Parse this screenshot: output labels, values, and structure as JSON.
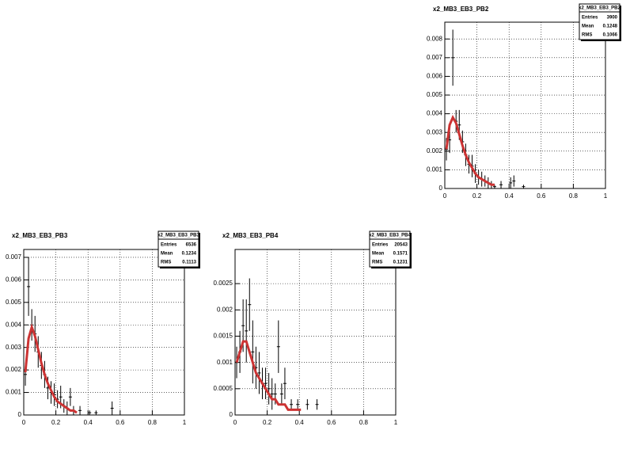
{
  "chart_data": [
    {
      "type": "errorbar",
      "title": "x2_MB3_EB3_PB2",
      "stats": {
        "name": "x2_MB3_EB3_PB2",
        "rows": [
          {
            "label": "Entries",
            "value": 3900
          },
          {
            "label": "Mean",
            "value": 0.1248
          },
          {
            "label": "RMS",
            "value": 0.1066
          }
        ]
      },
      "x": [
        0.01,
        0.03,
        0.05,
        0.07,
        0.09,
        0.11,
        0.13,
        0.15,
        0.17,
        0.19,
        0.21,
        0.23,
        0.25,
        0.27,
        0.29,
        0.31,
        0.35,
        0.41,
        0.43,
        0.49
      ],
      "values": [
        0.0021,
        0.0026,
        0.007,
        0.0036,
        0.0034,
        0.0025,
        0.0018,
        0.0013,
        0.0012,
        0.0008,
        0.0006,
        0.0005,
        0.0004,
        0.0003,
        0.0002,
        0.0001,
        0.0002,
        0.0003,
        0.0004,
        0.0001
      ],
      "errors": [
        0.0006,
        0.0007,
        0.0015,
        0.0006,
        0.0008,
        0.0006,
        0.0006,
        0.0005,
        0.0006,
        0.0005,
        0.0004,
        0.0004,
        0.0003,
        0.0003,
        0.0002,
        0.0001,
        0.0002,
        0.0003,
        0.0003,
        0.0001
      ],
      "color": "#000000",
      "fit": {
        "color": "#cc3333",
        "x": [
          0.01,
          0.03,
          0.05,
          0.07,
          0.09,
          0.11,
          0.13,
          0.15,
          0.17,
          0.19,
          0.21,
          0.23,
          0.25,
          0.27,
          0.29,
          0.31
        ],
        "values": [
          0.0021,
          0.0034,
          0.0038,
          0.0035,
          0.0029,
          0.0023,
          0.0018,
          0.0014,
          0.0011,
          0.0008,
          0.0006,
          0.0005,
          0.0004,
          0.0003,
          0.0002,
          0.0002
        ]
      },
      "xlim": [
        0,
        1
      ],
      "xticks": [
        0,
        0.2,
        0.4,
        0.6,
        0.8,
        1
      ],
      "ylim": [
        0,
        0.0089
      ],
      "yticks": [
        0,
        0.001,
        0.002,
        0.003,
        0.004,
        0.005,
        0.006,
        0.007,
        0.008
      ],
      "grid": true
    },
    {
      "type": "errorbar",
      "title": "x2_MB3_EB3_PB3",
      "stats": {
        "name": "x2_MB3_EB3_PB3",
        "rows": [
          {
            "label": "Entries",
            "value": 6536
          },
          {
            "label": "Mean",
            "value": 0.1234
          },
          {
            "label": "RMS",
            "value": 0.1113
          }
        ]
      },
      "x": [
        0.01,
        0.03,
        0.05,
        0.07,
        0.09,
        0.11,
        0.13,
        0.15,
        0.17,
        0.19,
        0.21,
        0.23,
        0.25,
        0.27,
        0.29,
        0.31,
        0.35,
        0.41,
        0.45,
        0.55
      ],
      "values": [
        0.0018,
        0.0057,
        0.004,
        0.0036,
        0.0028,
        0.0022,
        0.0018,
        0.0012,
        0.001,
        0.0009,
        0.0007,
        0.0008,
        0.0004,
        0.0003,
        0.0008,
        0.0002,
        0.0002,
        0.0001,
        0.0001,
        0.0003
      ],
      "errors": [
        0.0005,
        0.0013,
        0.0007,
        0.0008,
        0.0007,
        0.0006,
        0.0006,
        0.0005,
        0.0005,
        0.0005,
        0.0004,
        0.0005,
        0.0003,
        0.0003,
        0.0004,
        0.0002,
        0.0002,
        0.0001,
        0.0001,
        0.0003
      ],
      "color": "#000000",
      "fit": {
        "color": "#cc3333",
        "x": [
          0.01,
          0.03,
          0.05,
          0.07,
          0.09,
          0.11,
          0.13,
          0.15,
          0.17,
          0.19,
          0.21,
          0.23,
          0.25,
          0.27,
          0.29,
          0.31,
          0.33
        ],
        "values": [
          0.0019,
          0.0034,
          0.0039,
          0.0035,
          0.0029,
          0.0023,
          0.0018,
          0.0014,
          0.0011,
          0.0008,
          0.0006,
          0.0005,
          0.0004,
          0.0003,
          0.0002,
          0.0002,
          0.0001
        ]
      },
      "xlim": [
        0,
        1
      ],
      "xticks": [
        0,
        0.2,
        0.4,
        0.6,
        0.8,
        1
      ],
      "ylim": [
        0,
        0.00735
      ],
      "yticks": [
        0,
        0.001,
        0.002,
        0.003,
        0.004,
        0.005,
        0.006,
        0.007
      ],
      "grid": true
    },
    {
      "type": "errorbar",
      "title": "x2_MB3_EB3_PB4",
      "stats": {
        "name": "x2_MB3_EB3_PB4",
        "rows": [
          {
            "label": "Entries",
            "value": 20543
          },
          {
            "label": "Mean",
            "value": 0.1571
          },
          {
            "label": "RMS",
            "value": 0.1231
          }
        ]
      },
      "x": [
        0.01,
        0.03,
        0.05,
        0.07,
        0.09,
        0.11,
        0.13,
        0.15,
        0.17,
        0.19,
        0.21,
        0.23,
        0.25,
        0.27,
        0.29,
        0.31,
        0.35,
        0.39,
        0.45,
        0.51
      ],
      "values": [
        0.001,
        0.0012,
        0.0017,
        0.0016,
        0.0021,
        0.0012,
        0.0009,
        0.0008,
        0.0006,
        0.0006,
        0.0005,
        0.0004,
        0.0004,
        0.0013,
        0.0004,
        0.0006,
        0.0002,
        0.0002,
        0.0002,
        0.0002
      ],
      "errors": [
        0.0003,
        0.0004,
        0.0005,
        0.0006,
        0.0005,
        0.0006,
        0.0004,
        0.0004,
        0.0003,
        0.0003,
        0.0003,
        0.0003,
        0.0002,
        0.0005,
        0.0002,
        0.0003,
        0.0001,
        0.0001,
        0.0001,
        0.0001
      ],
      "color": "#000000",
      "fit": {
        "color": "#cc3333",
        "x": [
          0.01,
          0.03,
          0.05,
          0.07,
          0.09,
          0.11,
          0.13,
          0.15,
          0.17,
          0.19,
          0.21,
          0.23,
          0.25,
          0.27,
          0.29,
          0.31,
          0.33,
          0.35,
          0.37,
          0.39,
          0.41
        ],
        "values": [
          0.001,
          0.0012,
          0.0014,
          0.0014,
          0.0012,
          0.001,
          0.0008,
          0.0007,
          0.0006,
          0.0005,
          0.0004,
          0.0003,
          0.0003,
          0.0002,
          0.0002,
          0.0002,
          0.0001,
          0.0001,
          0.0001,
          0.0001,
          0.0001
        ]
      },
      "xlim": [
        0,
        1
      ],
      "xticks": [
        0,
        0.2,
        0.4,
        0.6,
        0.8,
        1
      ],
      "ylim": [
        0,
        0.00315
      ],
      "yticks": [
        0,
        0.0005,
        0.001,
        0.0015,
        0.002,
        0.0025
      ],
      "grid": true
    }
  ]
}
